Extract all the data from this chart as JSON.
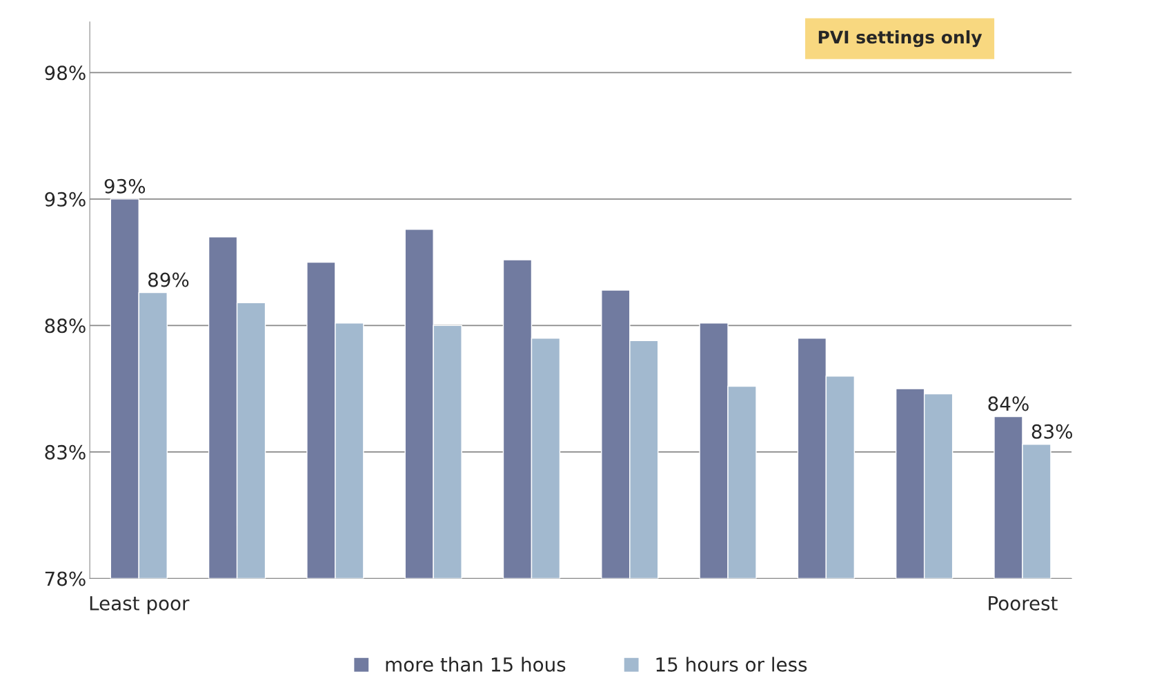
{
  "chart_data": {
    "type": "bar",
    "categories": [
      "Least poor",
      null,
      null,
      null,
      null,
      null,
      null,
      null,
      null,
      "Poorest"
    ],
    "series": [
      {
        "name": "more than 15 hous",
        "color": "#717ba0",
        "values": [
          93.0,
          91.5,
          90.5,
          91.8,
          90.6,
          89.4,
          88.1,
          87.5,
          85.5,
          84.4
        ],
        "value_labels": [
          "93%",
          null,
          null,
          null,
          null,
          null,
          null,
          null,
          null,
          "84%"
        ]
      },
      {
        "name": "15 hours or less",
        "color": "#a2b9cf",
        "values": [
          89.3,
          88.9,
          88.1,
          88.0,
          87.5,
          87.4,
          85.6,
          86.0,
          85.3,
          83.3
        ],
        "value_labels": [
          "89%",
          null,
          null,
          null,
          null,
          null,
          null,
          null,
          null,
          "83%"
        ]
      }
    ],
    "ylim": [
      78,
      100
    ],
    "yticks": [
      {
        "value": 78,
        "label": "78%"
      },
      {
        "value": 83,
        "label": "83%"
      },
      {
        "value": 88,
        "label": "88%"
      },
      {
        "value": 93,
        "label": "93%"
      },
      {
        "value": 98,
        "label": "98%"
      }
    ],
    "grid": "y",
    "legend": "bottom",
    "annotations": [
      "PVI settings only"
    ]
  }
}
